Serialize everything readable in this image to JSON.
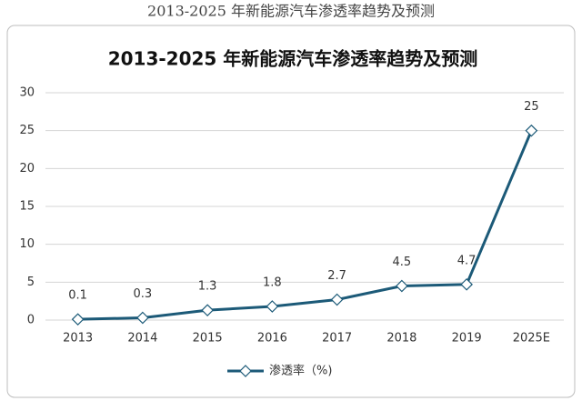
{
  "caption": "2013-2025 年新能源汽车渗透率趋势及预测",
  "chart_data": {
    "type": "line",
    "title": "2013-2025 年新能源汽车渗透率趋势及预测",
    "categories": [
      "2013",
      "2014",
      "2015",
      "2016",
      "2017",
      "2018",
      "2019",
      "2025E"
    ],
    "series": [
      {
        "name": "渗透率（%)",
        "color": "#1c5a78",
        "values": [
          0.1,
          0.3,
          1.3,
          1.8,
          2.7,
          4.5,
          4.7,
          25
        ]
      }
    ],
    "ylim": [
      0,
      30
    ],
    "yticks": [
      0,
      5,
      10,
      15,
      20,
      25,
      30
    ],
    "grid": true,
    "legend": "bottom"
  }
}
